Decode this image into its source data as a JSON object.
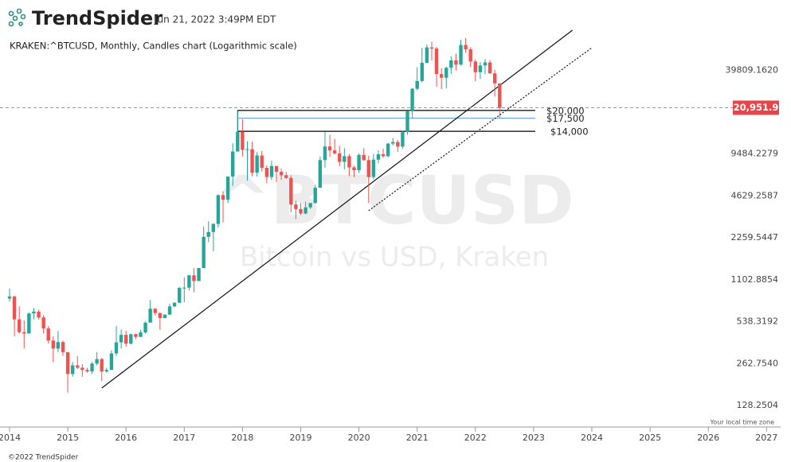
{
  "header": {
    "brand": "TrendSpider",
    "timestamp": "Jun 21, 2022 3:49PM EDT"
  },
  "footer": {
    "copyright": "©2022 TrendSpider",
    "timezone": "Your local time zone"
  },
  "chart_data": {
    "type": "candlestick",
    "title": "KRAKEN:^BTCUSD, Monthly, Candles chart (Logarithmic scale)",
    "watermark": "^BTCUSD",
    "watermark_subtitle": "Bitcoin vs USD, Kraken",
    "log_scale": true,
    "up_color": "#26a69a",
    "down_color": "#ef5350",
    "x": [
      "2014-01",
      "2014-02",
      "2014-03",
      "2014-04",
      "2014-05",
      "2014-06",
      "2014-07",
      "2014-08",
      "2014-09",
      "2014-10",
      "2014-11",
      "2014-12",
      "2015-01",
      "2015-02",
      "2015-03",
      "2015-04",
      "2015-05",
      "2015-06",
      "2015-07",
      "2015-08",
      "2015-09",
      "2015-10",
      "2015-11",
      "2015-12",
      "2016-01",
      "2016-02",
      "2016-03",
      "2016-04",
      "2016-05",
      "2016-06",
      "2016-07",
      "2016-08",
      "2016-09",
      "2016-10",
      "2016-11",
      "2016-12",
      "2017-01",
      "2017-02",
      "2017-03",
      "2017-04",
      "2017-05",
      "2017-06",
      "2017-07",
      "2017-08",
      "2017-09",
      "2017-10",
      "2017-11",
      "2017-12",
      "2018-01",
      "2018-02",
      "2018-03",
      "2018-04",
      "2018-05",
      "2018-06",
      "2018-07",
      "2018-08",
      "2018-09",
      "2018-10",
      "2018-11",
      "2018-12",
      "2019-01",
      "2019-02",
      "2019-03",
      "2019-04",
      "2019-05",
      "2019-06",
      "2019-07",
      "2019-08",
      "2019-09",
      "2019-10",
      "2019-11",
      "2019-12",
      "2020-01",
      "2020-02",
      "2020-03",
      "2020-04",
      "2020-05",
      "2020-06",
      "2020-07",
      "2020-08",
      "2020-09",
      "2020-10",
      "2020-11",
      "2020-12",
      "2021-01",
      "2021-02",
      "2021-03",
      "2021-04",
      "2021-05",
      "2021-06",
      "2021-07",
      "2021-08",
      "2021-09",
      "2021-10",
      "2021-11",
      "2021-12",
      "2022-01",
      "2022-02",
      "2022-03",
      "2022-04",
      "2022-05",
      "2022-06"
    ],
    "open": [
      800,
      830,
      560,
      450,
      440,
      620,
      640,
      580,
      480,
      390,
      340,
      380,
      320,
      220,
      255,
      245,
      236,
      230,
      263,
      284,
      230,
      236,
      313,
      378,
      430,
      370,
      435,
      415,
      448,
      530,
      672,
      625,
      573,
      608,
      700,
      745,
      960,
      965,
      1190,
      1080,
      1350,
      2300,
      2500,
      2870,
      4700,
      4340,
      6450,
      9900,
      13900,
      10200,
      10300,
      6900,
      9250,
      7500,
      6400,
      7730,
      7000,
      6600,
      6300,
      4000,
      3700,
      3430,
      3810,
      4100,
      5330,
      8560,
      10800,
      10100,
      9600,
      8300,
      9150,
      7550,
      7200,
      9350,
      8550,
      6400,
      8620,
      9450,
      9150,
      11350,
      11650,
      10780,
      13800,
      19700,
      28990,
      33100,
      45200,
      58800,
      57700,
      37300,
      35000,
      41500,
      47100,
      43800,
      61300,
      57000,
      46200,
      38500,
      43200,
      45500,
      37700,
      31800
    ],
    "high": [
      950,
      840,
      700,
      550,
      630,
      680,
      660,
      600,
      500,
      420,
      460,
      390,
      320,
      270,
      300,
      260,
      245,
      270,
      320,
      290,
      245,
      330,
      500,
      470,
      460,
      440,
      440,
      470,
      540,
      780,
      680,
      630,
      610,
      730,
      750,
      980,
      1150,
      1200,
      1350,
      1350,
      2750,
      3000,
      2900,
      4750,
      5000,
      6450,
      11400,
      19700,
      17200,
      11800,
      11700,
      9800,
      10000,
      7800,
      8500,
      7760,
      7400,
      7000,
      6600,
      4250,
      4100,
      4200,
      4100,
      5600,
      9100,
      13900,
      13200,
      12300,
      10900,
      10500,
      9500,
      7750,
      9600,
      10500,
      9200,
      9500,
      10100,
      10400,
      11450,
      12480,
      12100,
      14100,
      19900,
      29300,
      41950,
      58350,
      61800,
      64900,
      59500,
      41300,
      42300,
      50500,
      52900,
      67000,
      69000,
      59100,
      47900,
      45800,
      48200,
      47400,
      40000,
      31900
    ],
    "low": [
      760,
      420,
      440,
      340,
      440,
      560,
      560,
      440,
      370,
      270,
      320,
      300,
      160,
      210,
      240,
      210,
      225,
      220,
      255,
      195,
      225,
      235,
      300,
      340,
      350,
      365,
      400,
      415,
      440,
      530,
      600,
      470,
      570,
      605,
      690,
      740,
      750,
      920,
      890,
      1080,
      1350,
      2100,
      1800,
      2700,
      2950,
      4100,
      5500,
      9900,
      9100,
      6000,
      6500,
      6450,
      7050,
      5750,
      6100,
      5880,
      6100,
      6200,
      3500,
      3120,
      3350,
      3380,
      3700,
      4070,
      5330,
      7500,
      9050,
      9400,
      7700,
      7300,
      6500,
      6400,
      6850,
      8450,
      4100,
      6150,
      8100,
      8900,
      8980,
      10950,
      9850,
      10400,
      13200,
      17600,
      28150,
      32300,
      45000,
      47000,
      30000,
      28800,
      29300,
      37300,
      39600,
      43300,
      53500,
      42000,
      32900,
      34300,
      37200,
      37600,
      25400,
      17600
    ],
    "close": [
      830,
      560,
      450,
      440,
      620,
      640,
      580,
      480,
      390,
      340,
      380,
      320,
      220,
      255,
      245,
      236,
      230,
      263,
      284,
      230,
      236,
      313,
      378,
      430,
      370,
      435,
      415,
      448,
      530,
      672,
      625,
      573,
      608,
      700,
      745,
      960,
      965,
      1190,
      1080,
      1350,
      2300,
      2500,
      2870,
      4700,
      4340,
      6450,
      9900,
      13900,
      10200,
      10300,
      6900,
      9250,
      7500,
      6400,
      7730,
      7000,
      6600,
      6300,
      4000,
      3700,
      3430,
      3810,
      4100,
      5330,
      8560,
      10800,
      10100,
      9600,
      8300,
      9150,
      7550,
      7200,
      9350,
      8550,
      6400,
      8620,
      9450,
      9150,
      11350,
      11650,
      10780,
      13800,
      19700,
      28990,
      33100,
      45200,
      58800,
      57700,
      37300,
      35000,
      41500,
      47100,
      43800,
      61300,
      57000,
      46200,
      38500,
      43200,
      45500,
      37700,
      31800,
      20951.9
    ],
    "ylim": [
      91.3,
      88000
    ],
    "yticks": [
      128.2504,
      {
        "value": 262.754,
        "label": "262.7540"
      },
      538.3192,
      1102.8854,
      2259.5447,
      4629.2587,
      9484.2279,
      {
        "value": 39809.162,
        "label": "39809.1620"
      }
    ],
    "xlim": [
      "2013-12",
      "2027-04"
    ],
    "xticks": [
      2014,
      2015,
      2016,
      2017,
      2018,
      2019,
      2020,
      2021,
      2022,
      2023,
      2024,
      2025,
      2026,
      2027
    ],
    "last_price": {
      "value": 20951.9,
      "label": "20,951.9",
      "color": "#e8454a"
    },
    "levels": [
      {
        "value": 20000,
        "label": "$20,000",
        "color": "#000000",
        "start": "2017-12"
      },
      {
        "value": 17500,
        "label": "$17,500",
        "color": "#5b9fe0",
        "start": "2017-12"
      },
      {
        "value": 14000,
        "label": "$14,000",
        "color": "#000000",
        "start": "2017-12"
      }
    ],
    "trendlines": [
      {
        "style": "solid",
        "start": {
          "x": "2015-08",
          "y": 173
        },
        "end": {
          "x": "2023-09",
          "y": 78950
        }
      },
      {
        "style": "dotted",
        "start": {
          "x": "2020-03",
          "y": 3600
        },
        "end": {
          "x": "2024-01",
          "y": 58500
        }
      }
    ]
  }
}
